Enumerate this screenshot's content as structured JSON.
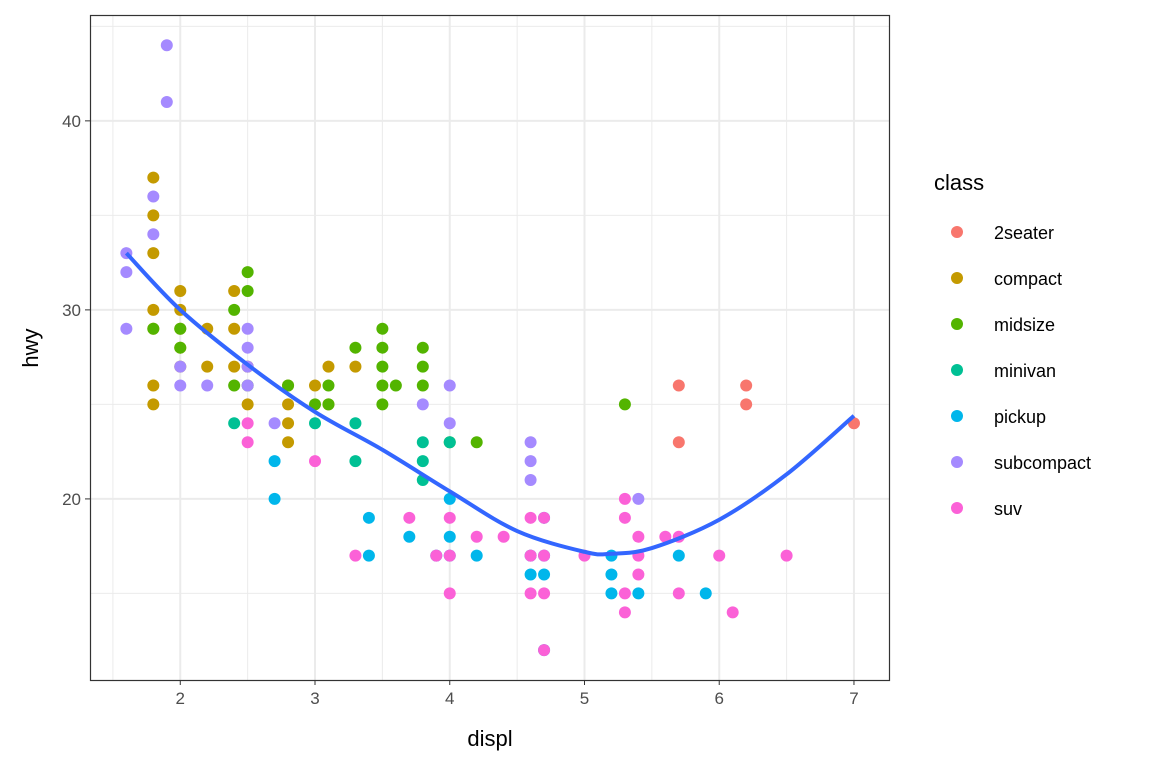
{
  "chart_data": {
    "type": "scatter",
    "xlabel": "displ",
    "ylabel": "hwy",
    "xlim": [
      1.33,
      7.26
    ],
    "ylim": [
      10.42,
      45.6
    ],
    "x_ticks": [
      2,
      3,
      4,
      5,
      6,
      7
    ],
    "y_ticks": [
      20,
      30,
      40
    ],
    "grid": true,
    "legend": {
      "title": "class",
      "placement": "right"
    },
    "series": [
      {
        "name": "2seater",
        "color": "#F8766D",
        "points": [
          [
            5.7,
            26
          ],
          [
            5.7,
            23
          ],
          [
            6.2,
            26
          ],
          [
            6.2,
            25
          ],
          [
            7.0,
            24
          ]
        ]
      },
      {
        "name": "compact",
        "color": "#C49A00",
        "points": [
          [
            1.8,
            29
          ],
          [
            2.0,
            31
          ],
          [
            2.0,
            30
          ],
          [
            2.8,
            26
          ],
          [
            3.1,
            27
          ],
          [
            1.8,
            26
          ],
          [
            1.8,
            25
          ],
          [
            2.0,
            28
          ],
          [
            2.0,
            27
          ],
          [
            2.8,
            25
          ],
          [
            3.1,
            25
          ],
          [
            2.2,
            27
          ],
          [
            2.2,
            29
          ],
          [
            2.4,
            31
          ],
          [
            3.0,
            26
          ],
          [
            3.3,
            27
          ],
          [
            1.8,
            35
          ],
          [
            1.8,
            37
          ],
          [
            1.8,
            33
          ],
          [
            1.8,
            30
          ],
          [
            2.0,
            29
          ],
          [
            2.5,
            27
          ],
          [
            2.8,
            24
          ],
          [
            2.8,
            23
          ],
          [
            2.5,
            25
          ],
          [
            2.4,
            29
          ],
          [
            2.4,
            27
          ]
        ]
      },
      {
        "name": "midsize",
        "color": "#53B400",
        "points": [
          [
            2.4,
            30
          ],
          [
            2.5,
            31
          ],
          [
            2.5,
            32
          ],
          [
            2.4,
            26
          ],
          [
            2.5,
            26
          ],
          [
            3.0,
            25
          ],
          [
            3.1,
            26
          ],
          [
            3.5,
            29
          ],
          [
            3.5,
            28
          ],
          [
            3.5,
            27
          ],
          [
            3.5,
            26
          ],
          [
            3.5,
            25
          ],
          [
            3.3,
            28
          ],
          [
            3.8,
            28
          ],
          [
            3.8,
            27
          ],
          [
            3.8,
            26
          ],
          [
            3.6,
            26
          ],
          [
            2.0,
            29
          ],
          [
            2.0,
            28
          ],
          [
            2.8,
            26
          ],
          [
            3.1,
            25
          ],
          [
            4.0,
            23
          ],
          [
            4.2,
            23
          ],
          [
            5.3,
            25
          ],
          [
            1.8,
            29
          ]
        ]
      },
      {
        "name": "minivan",
        "color": "#00C094",
        "points": [
          [
            2.4,
            24
          ],
          [
            3.0,
            24
          ],
          [
            3.3,
            24
          ],
          [
            3.3,
            22
          ],
          [
            3.8,
            23
          ],
          [
            3.8,
            22
          ],
          [
            3.8,
            21
          ],
          [
            4.0,
            23
          ]
        ]
      },
      {
        "name": "pickup",
        "color": "#00B6EB",
        "points": [
          [
            2.7,
            22
          ],
          [
            2.7,
            20
          ],
          [
            3.4,
            19
          ],
          [
            3.4,
            17
          ],
          [
            3.7,
            18
          ],
          [
            3.9,
            17
          ],
          [
            4.0,
            20
          ],
          [
            4.0,
            18
          ],
          [
            4.0,
            17
          ],
          [
            4.2,
            17
          ],
          [
            4.6,
            17
          ],
          [
            4.6,
            16
          ],
          [
            4.7,
            19
          ],
          [
            4.7,
            17
          ],
          [
            4.7,
            16
          ],
          [
            4.7,
            12
          ],
          [
            5.2,
            16
          ],
          [
            5.2,
            15
          ],
          [
            5.2,
            17
          ],
          [
            5.4,
            15
          ],
          [
            5.7,
            17
          ],
          [
            5.9,
            15
          ]
        ]
      },
      {
        "name": "subcompact",
        "color": "#A58AFF",
        "points": [
          [
            1.6,
            33
          ],
          [
            1.6,
            32
          ],
          [
            1.6,
            29
          ],
          [
            1.8,
            36
          ],
          [
            1.8,
            34
          ],
          [
            1.9,
            44
          ],
          [
            1.9,
            41
          ],
          [
            2.0,
            27
          ],
          [
            2.0,
            26
          ],
          [
            2.2,
            26
          ],
          [
            2.5,
            29
          ],
          [
            2.5,
            28
          ],
          [
            2.5,
            27
          ],
          [
            2.5,
            26
          ],
          [
            2.7,
            24
          ],
          [
            3.8,
            25
          ],
          [
            4.0,
            26
          ],
          [
            4.0,
            24
          ],
          [
            4.6,
            23
          ],
          [
            4.6,
            22
          ],
          [
            4.6,
            21
          ],
          [
            5.4,
            20
          ]
        ]
      },
      {
        "name": "suv",
        "color": "#FB61D7",
        "points": [
          [
            2.5,
            24
          ],
          [
            2.5,
            23
          ],
          [
            3.0,
            22
          ],
          [
            3.3,
            17
          ],
          [
            3.7,
            19
          ],
          [
            4.0,
            19
          ],
          [
            4.0,
            17
          ],
          [
            4.0,
            15
          ],
          [
            4.2,
            18
          ],
          [
            4.4,
            18
          ],
          [
            4.6,
            19
          ],
          [
            4.6,
            17
          ],
          [
            4.6,
            15
          ],
          [
            4.7,
            19
          ],
          [
            4.7,
            17
          ],
          [
            4.7,
            15
          ],
          [
            4.7,
            12
          ],
          [
            5.0,
            17
          ],
          [
            5.3,
            20
          ],
          [
            5.3,
            19
          ],
          [
            5.3,
            15
          ],
          [
            5.3,
            14
          ],
          [
            5.4,
            18
          ],
          [
            5.4,
            17
          ],
          [
            5.4,
            16
          ],
          [
            5.6,
            18
          ],
          [
            5.7,
            18
          ],
          [
            5.7,
            15
          ],
          [
            6.0,
            17
          ],
          [
            6.1,
            14
          ],
          [
            6.5,
            17
          ],
          [
            3.9,
            17
          ]
        ]
      }
    ],
    "smooth": {
      "color": "#3366FF",
      "method": "loess",
      "points": [
        [
          1.6,
          33
        ],
        [
          2,
          30
        ],
        [
          2.5,
          27.1
        ],
        [
          3,
          24.6
        ],
        [
          3.5,
          22.6
        ],
        [
          4,
          20.4
        ],
        [
          4.5,
          18.3
        ],
        [
          5,
          17.2
        ],
        [
          5.2,
          17.1
        ],
        [
          5.5,
          17.4
        ],
        [
          6,
          18.9
        ],
        [
          6.5,
          21.3
        ],
        [
          7,
          24.4
        ]
      ]
    }
  }
}
